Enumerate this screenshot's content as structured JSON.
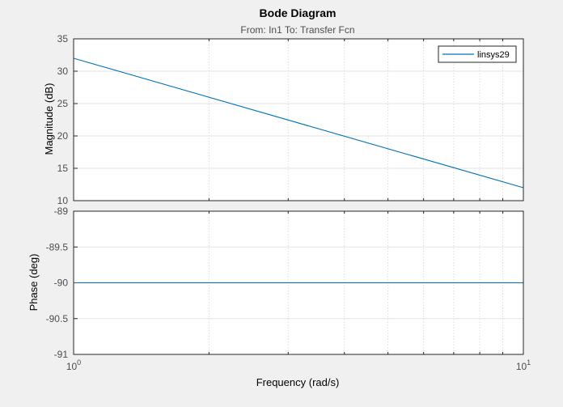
{
  "chart_data": {
    "type": "line",
    "title": "Bode Diagram",
    "subtitle": "From: In1  To: Transfer Fcn",
    "xlabel": "Frequency  (rad/s)",
    "xscale": "log",
    "xlim": [
      1,
      10
    ],
    "x_tick_labels": [
      {
        "value": 1,
        "base": "10",
        "exp": "0"
      },
      {
        "value": 10,
        "base": "10",
        "exp": "1"
      }
    ],
    "grid": true,
    "legend": {
      "location": "top-right",
      "entries": [
        "linsys29"
      ]
    },
    "color": "#0072bd",
    "panels": [
      {
        "name": "magnitude",
        "ylabel": "Magnitude (dB)",
        "ylim": [
          10,
          35
        ],
        "yticks": [
          10,
          15,
          20,
          25,
          30,
          35
        ],
        "ytick_labels": [
          "10",
          "15",
          "20",
          "25",
          "30",
          "35"
        ],
        "series": [
          {
            "name": "linsys29",
            "x": [
              1,
              10
            ],
            "values": [
              32,
              12
            ]
          }
        ]
      },
      {
        "name": "phase",
        "ylabel": "Phase (deg)",
        "ylim": [
          -91,
          -89
        ],
        "yticks": [
          -91,
          -90.5,
          -90,
          -89.5,
          -89
        ],
        "ytick_labels": [
          "-91",
          "-90.5",
          "-90",
          "-89.5",
          "-89"
        ],
        "series": [
          {
            "name": "linsys29",
            "x": [
              1,
              10
            ],
            "values": [
              -90,
              -90
            ]
          }
        ]
      }
    ]
  }
}
